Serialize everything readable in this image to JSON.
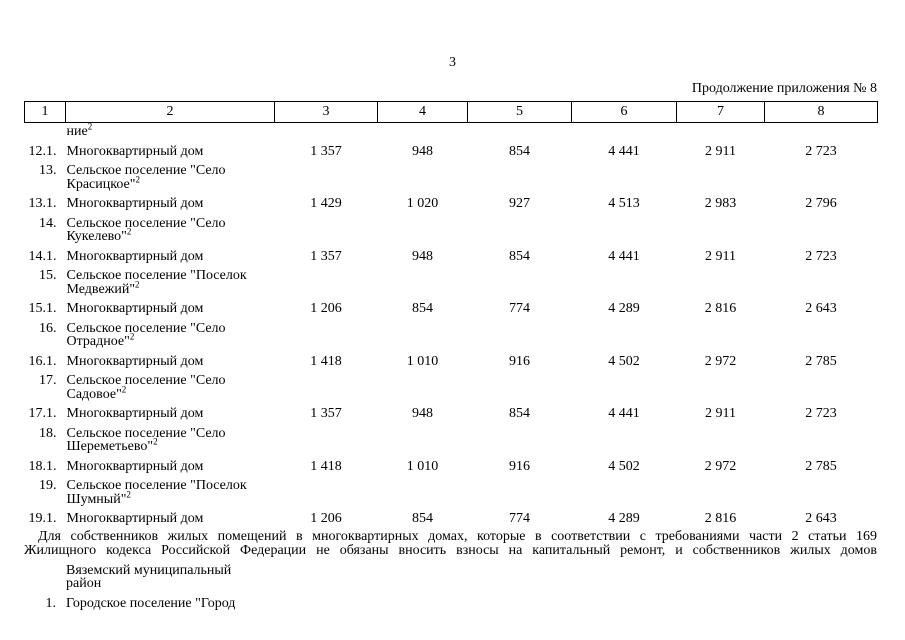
{
  "page": {
    "number": "3",
    "continuation_label": "Продолжение приложения № 8"
  },
  "table": {
    "header": [
      "1",
      "2",
      "3",
      "4",
      "5",
      "6",
      "7",
      "8"
    ],
    "rows": [
      {
        "num": "",
        "lines": [
          "ние"
        ],
        "sup": "2",
        "values": null
      },
      {
        "num": "12.1.",
        "lines": [
          "Многоквартирный дом"
        ],
        "sup": "",
        "values": [
          "1 357",
          "948",
          "854",
          "4 441",
          "2 911",
          "2 723"
        ]
      },
      {
        "num": "13.",
        "lines": [
          "Сельское поселение \"Село",
          "Красицкое\""
        ],
        "sup": "2",
        "values": null
      },
      {
        "num": "13.1.",
        "lines": [
          "Многоквартирный дом"
        ],
        "sup": "",
        "values": [
          "1 429",
          "1 020",
          "927",
          "4 513",
          "2 983",
          "2 796"
        ]
      },
      {
        "num": "14.",
        "lines": [
          "Сельское поселение \"Село",
          "Кукелево\""
        ],
        "sup": "2",
        "values": null
      },
      {
        "num": "14.1.",
        "lines": [
          "Многоквартирный дом"
        ],
        "sup": "",
        "values": [
          "1 357",
          "948",
          "854",
          "4 441",
          "2 911",
          "2 723"
        ]
      },
      {
        "num": "15.",
        "lines": [
          "Сельское поселение \"Поселок",
          "Медвежий\""
        ],
        "sup": "2",
        "values": null
      },
      {
        "num": "15.1.",
        "lines": [
          "Многоквартирный дом"
        ],
        "sup": "",
        "values": [
          "1 206",
          "854",
          "774",
          "4 289",
          "2 816",
          "2 643"
        ]
      },
      {
        "num": "16.",
        "lines": [
          "Сельское поселение \"Село",
          "Отрадное\""
        ],
        "sup": "2",
        "values": null
      },
      {
        "num": "16.1.",
        "lines": [
          "Многоквартирный дом"
        ],
        "sup": "",
        "values": [
          "1 418",
          "1 010",
          "916",
          "4 502",
          "2 972",
          "2 785"
        ]
      },
      {
        "num": "17.",
        "lines": [
          "Сельское поселение \"Село",
          "Садовое\""
        ],
        "sup": "2",
        "values": null
      },
      {
        "num": "17.1.",
        "lines": [
          "Многоквартирный дом"
        ],
        "sup": "",
        "values": [
          "1 357",
          "948",
          "854",
          "4 441",
          "2 911",
          "2 723"
        ]
      },
      {
        "num": "18.",
        "lines": [
          "Сельское поселение \"Село",
          "Шереметьево\""
        ],
        "sup": "2",
        "values": null
      },
      {
        "num": "18.1.",
        "lines": [
          "Многоквартирный дом"
        ],
        "sup": "",
        "values": [
          "1 418",
          "1 010",
          "916",
          "4 502",
          "2 972",
          "2 785"
        ]
      },
      {
        "num": "19.",
        "lines": [
          "Сельское поселение \"Поселок",
          "Шумный\""
        ],
        "sup": "2",
        "values": null
      },
      {
        "num": "19.1.",
        "lines": [
          "Многоквартирный дом"
        ],
        "sup": "",
        "values": [
          "1 206",
          "854",
          "774",
          "4 289",
          "2 816",
          "2 643"
        ]
      }
    ]
  },
  "footnote": {
    "line1": "Для собственников жилых помещений в многоквартирных домах, которые в соответствии с требованиями части 2 статьи 169",
    "line2": "Жилищного кодекса Российской Федерации не обязаны вносить взносы на капитальный ремонт, и собственников жилых домов"
  },
  "continuation_table": {
    "rows": [
      {
        "num": "",
        "lines": [
          "Вяземский муниципальный",
          "район"
        ],
        "sup": "",
        "values": null
      },
      {
        "num": "1.",
        "lines": [
          "Городское поселение \"Город"
        ],
        "sup": "",
        "values": null
      }
    ]
  }
}
